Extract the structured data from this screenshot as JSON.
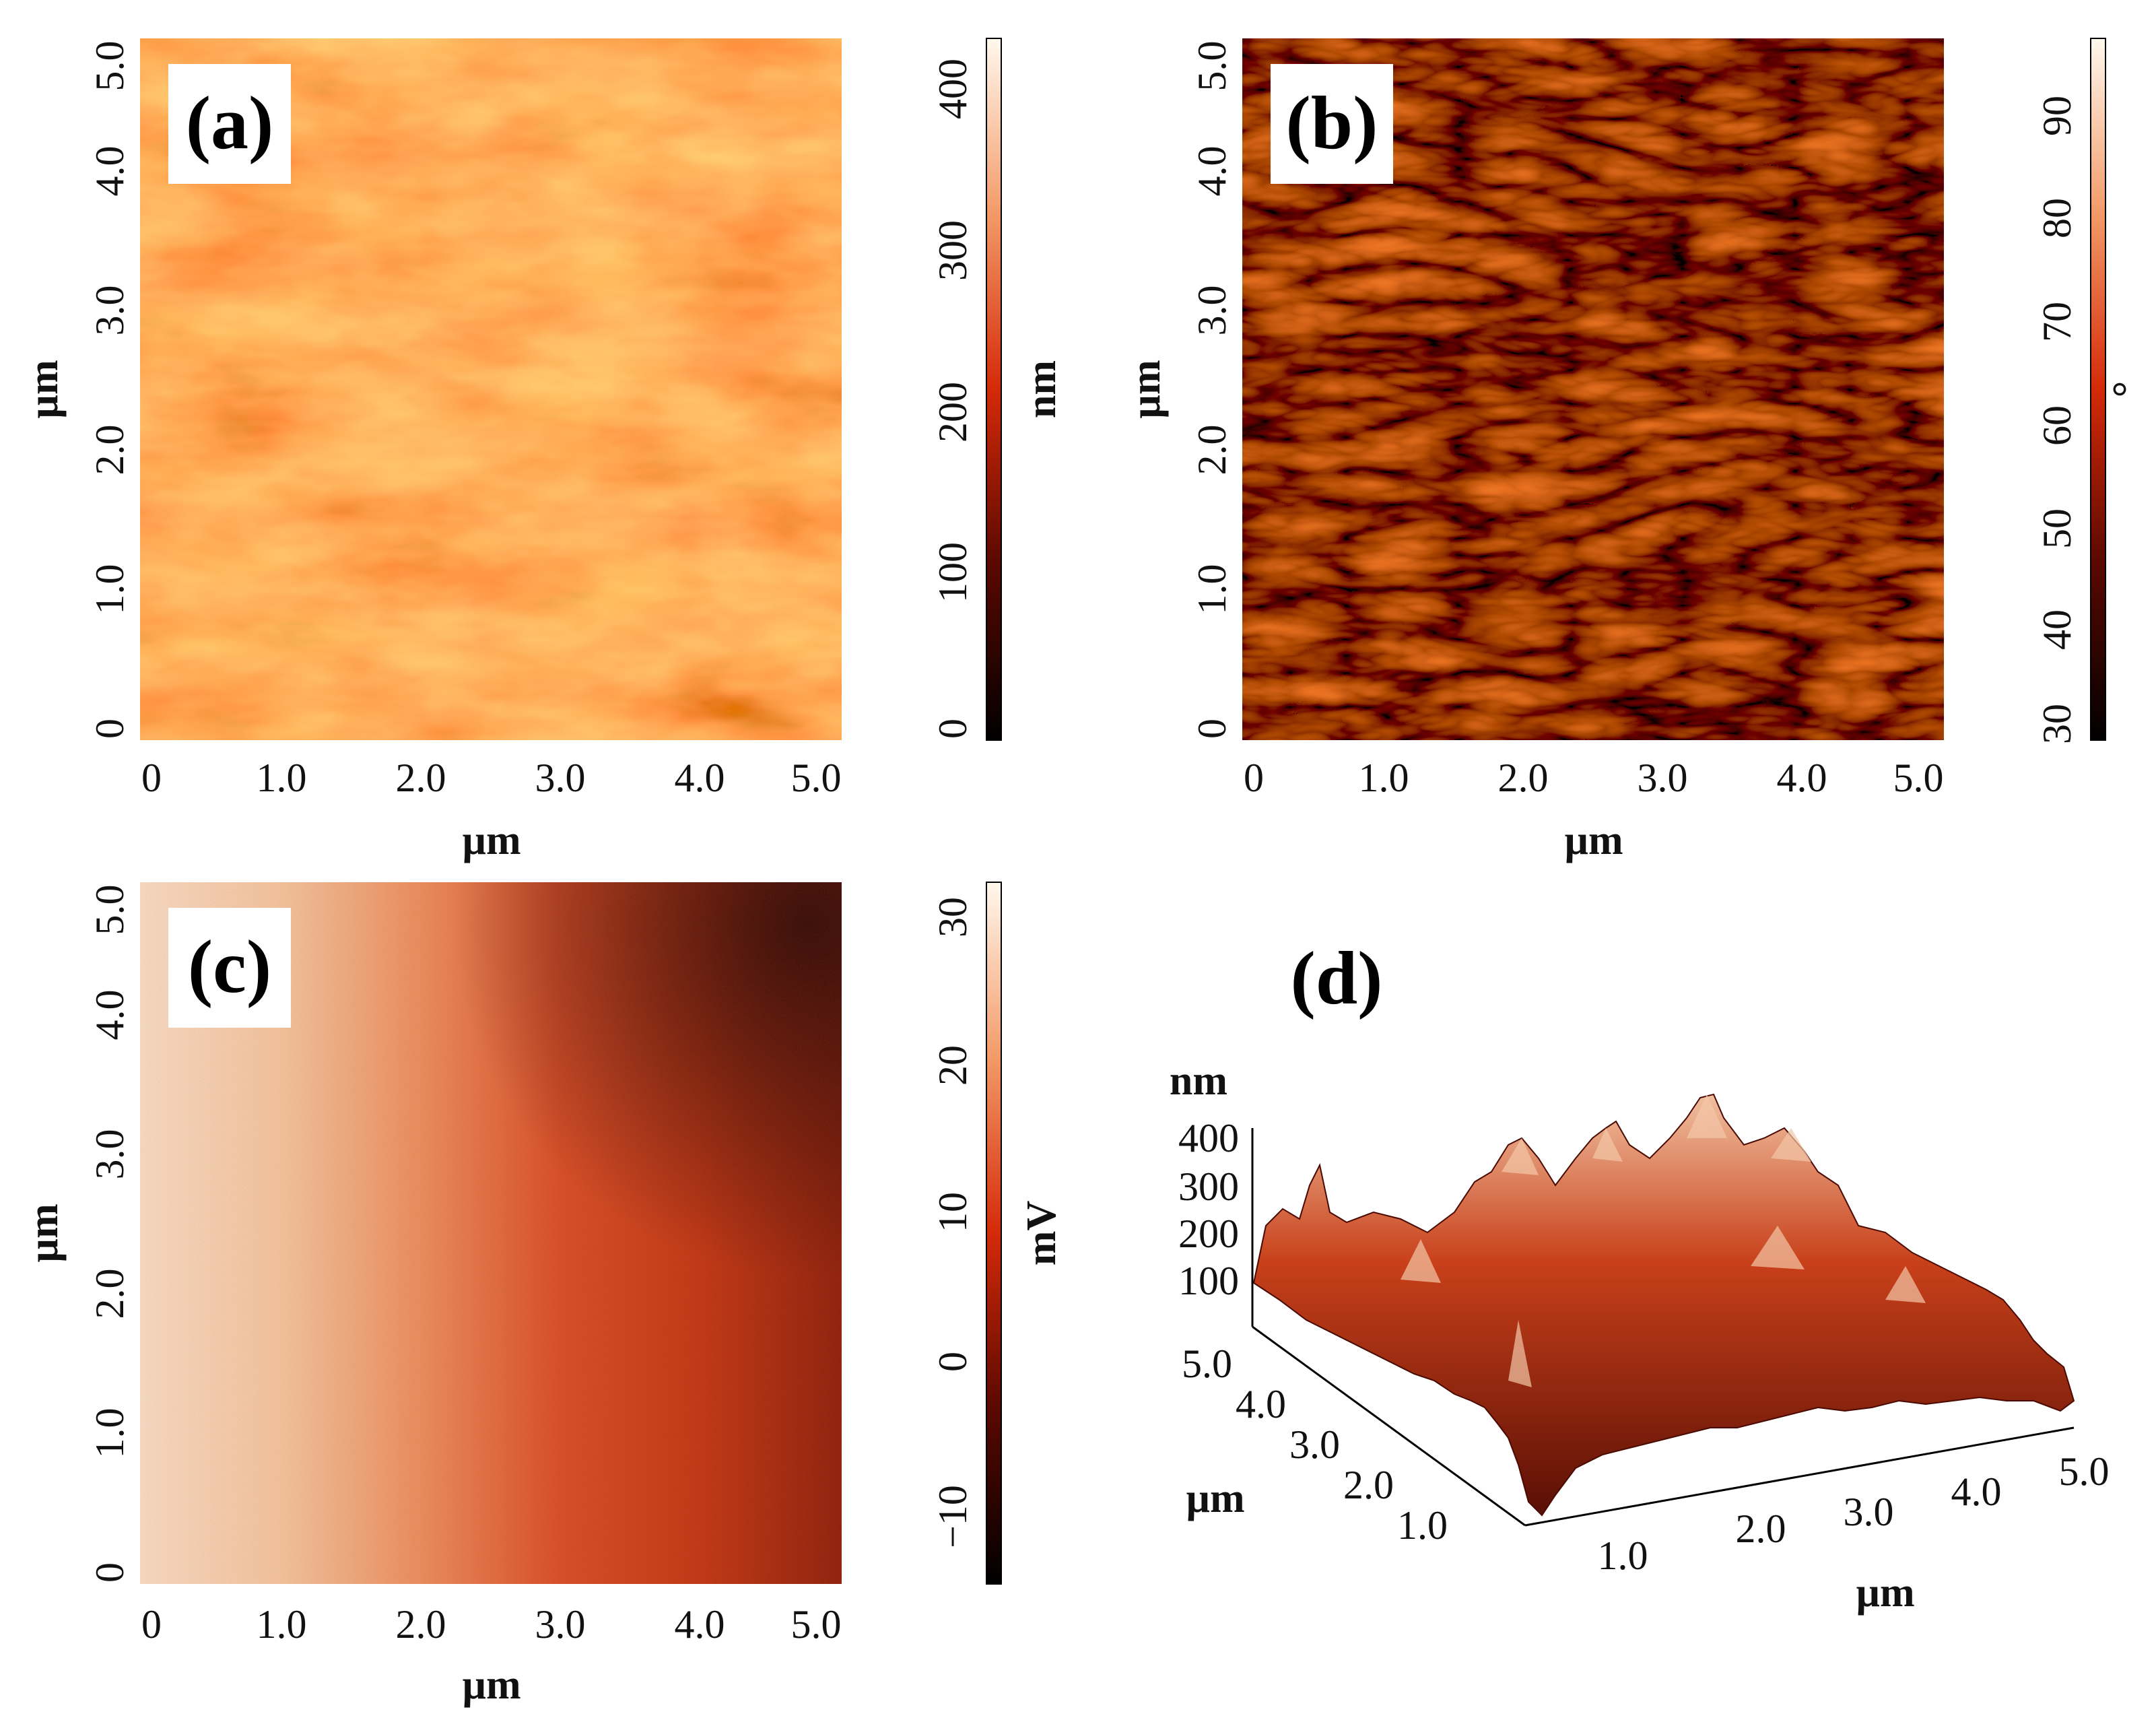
{
  "panels": {
    "a": {
      "label": "(a)",
      "x_ticks": [
        "0",
        "1.0",
        "2.0",
        "3.0",
        "4.0",
        "5.0"
      ],
      "y_ticks": [
        "0",
        "1.0",
        "2.0",
        "3.0",
        "4.0",
        "5.0"
      ],
      "x_axis_label": "µm",
      "y_axis_label": "µm",
      "colorbar": {
        "ticks": [
          "0",
          "100",
          "200",
          "300",
          "400"
        ],
        "unit": "nm"
      }
    },
    "b": {
      "label": "(b)",
      "x_ticks": [
        "0",
        "1.0",
        "2.0",
        "3.0",
        "4.0",
        "5.0"
      ],
      "y_ticks": [
        "0",
        "1.0",
        "2.0",
        "3.0",
        "4.0",
        "5.0"
      ],
      "x_axis_label": "µm",
      "y_axis_label": "µm",
      "colorbar": {
        "ticks": [
          "30",
          "40",
          "50",
          "60",
          "70",
          "80",
          "90"
        ],
        "unit": "°"
      }
    },
    "c": {
      "label": "(c)",
      "x_ticks": [
        "0",
        "1.0",
        "2.0",
        "3.0",
        "4.0",
        "5.0"
      ],
      "y_ticks": [
        "0",
        "1.0",
        "2.0",
        "3.0",
        "4.0",
        "5.0"
      ],
      "x_axis_label": "µm",
      "y_axis_label": "µm",
      "colorbar": {
        "ticks": [
          "−10",
          "0",
          "10",
          "20",
          "30"
        ],
        "unit": "mV"
      }
    },
    "d": {
      "label": "(d)",
      "z_unit": "nm",
      "z_ticks": [
        "400",
        "300",
        "200",
        "100"
      ],
      "y_ticks": [
        "5.0",
        "4.0",
        "3.0",
        "2.0",
        "1.0"
      ],
      "x_ticks": [
        "1.0",
        "2.0",
        "3.0",
        "4.0",
        "5.0"
      ],
      "y_axis_label": "µm",
      "x_axis_label": "µm"
    }
  },
  "colors": {
    "afm_dark": "#1a0000",
    "afm_mid": "#d63a10",
    "afm_light": "#fff3e0"
  }
}
